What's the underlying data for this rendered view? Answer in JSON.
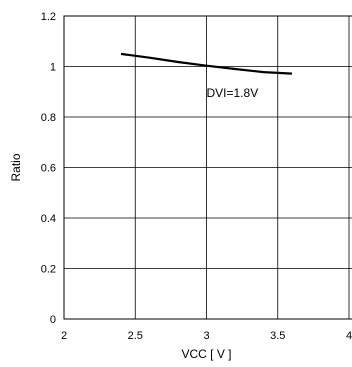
{
  "chart_data": {
    "type": "line",
    "title": "",
    "xlabel": "VCC [ V ]",
    "ylabel": "Ratio",
    "xlim": [
      2,
      4
    ],
    "ylim": [
      0,
      1.2
    ],
    "grid": true,
    "x_ticks": [
      2,
      2.5,
      3,
      3.5,
      4
    ],
    "x_tick_labels": [
      "2",
      "2.5",
      "3",
      "3.5",
      "4"
    ],
    "y_ticks": [
      0,
      0.2,
      0.4,
      0.6,
      0.8,
      1.0,
      1.2
    ],
    "y_tick_labels": [
      "0",
      "0.2",
      "0.4",
      "0.6",
      "0.8",
      "1",
      "1.2"
    ],
    "series": [
      {
        "name": "DVI=1.8V",
        "color": "#000000",
        "x": [
          2.4,
          2.6,
          2.8,
          3.0,
          3.2,
          3.4,
          3.6
        ],
        "y": [
          1.05,
          1.035,
          1.018,
          1.003,
          0.99,
          0.978,
          0.972
        ]
      }
    ],
    "annotations": [
      {
        "text": "DVI=1.8V",
        "x": 3.0,
        "y": 0.895
      }
    ]
  }
}
